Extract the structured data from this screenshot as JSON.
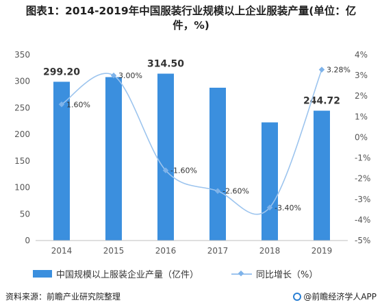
{
  "chart_data": {
    "type": "bar",
    "title_line1": "图表1：2014-2019年中国服装行业规模以上企业服装产量(单位：亿",
    "title_line2": "件，%)",
    "categories": [
      "2014",
      "2015",
      "2016",
      "2017",
      "2018",
      "2019"
    ],
    "series": [
      {
        "name": "中国规模以上服装企业产量（亿件）",
        "type": "bar",
        "axis": "left",
        "color": "#3b8fde",
        "values": [
          299.2,
          308.0,
          314.5,
          288.0,
          222.7,
          244.72
        ],
        "labels": [
          "299.20",
          "",
          "314.50",
          "",
          "",
          "244.72"
        ]
      },
      {
        "name": "同比增长（%）",
        "type": "line",
        "axis": "right",
        "color": "#9cc4ee",
        "values": [
          1.6,
          3.0,
          -1.6,
          -2.6,
          -3.4,
          3.28
        ],
        "labels": [
          "1.60%",
          "3.00%",
          "-1.60%",
          "-2.60%",
          "-3.40%",
          "3.28%"
        ]
      }
    ],
    "y_left": {
      "min": 0,
      "max": 350,
      "ticks": [
        "0",
        "50",
        "100",
        "150",
        "200",
        "250",
        "300",
        "350"
      ]
    },
    "y_right": {
      "min": -5,
      "max": 4,
      "ticks": [
        "-5%",
        "-4%",
        "-3%",
        "-2%",
        "-1%",
        "0%",
        "1%",
        "2%",
        "3%",
        "4%"
      ]
    },
    "grid": false,
    "legend_position": "bottom"
  },
  "footer": {
    "source": "资料来源：前瞻产业研究院整理",
    "brand": "@前瞻经济学人APP"
  }
}
